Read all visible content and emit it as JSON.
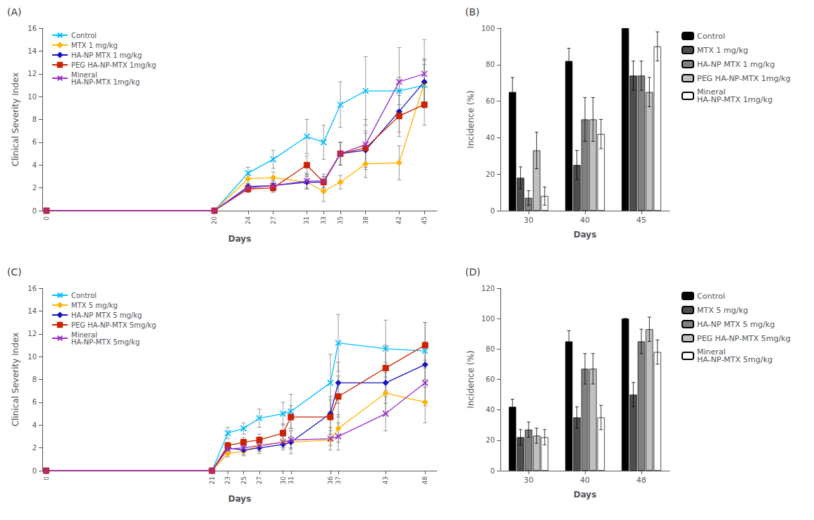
{
  "chart_data": [
    {
      "type": "line",
      "title": "(A)",
      "xlabel": "Days",
      "ylabel": "Clinical Severity Index",
      "x": [
        0,
        20,
        24,
        27,
        31,
        33,
        35,
        38,
        42,
        45
      ],
      "xlim": [
        -0.5,
        46.5
      ],
      "xticks": [
        0,
        20,
        24,
        27,
        31,
        33,
        35,
        38,
        42,
        45
      ],
      "ylim": [
        0,
        16
      ],
      "yticks": [
        0,
        2,
        4,
        6,
        8,
        10,
        12,
        14,
        16
      ],
      "legend": "upper left",
      "grid": false,
      "series": [
        {
          "name": "Control",
          "color": "#00BFFF",
          "marker": "x",
          "values": [
            0,
            0,
            3.3,
            4.5,
            6.5,
            6.0,
            9.3,
            10.5,
            10.5,
            11.0
          ],
          "errors": [
            0,
            0,
            0.5,
            0.8,
            1.5,
            1.5,
            2.0,
            3.0,
            1.2,
            1.8
          ]
        },
        {
          "name": "MTX 1 mg/kg",
          "color": "#FFB300",
          "marker": "diamond",
          "values": [
            0,
            0,
            2.8,
            2.9,
            2.5,
            1.7,
            2.5,
            4.1,
            4.2,
            11.2
          ],
          "errors": [
            0,
            0,
            0.4,
            0.5,
            0.6,
            0.9,
            0.6,
            1.2,
            1.5,
            2.0
          ]
        },
        {
          "name": "HA-NP MTX 1 mg/kg",
          "color": "#1515C0",
          "marker": "diamond",
          "values": [
            0,
            0,
            2.1,
            2.2,
            2.5,
            2.5,
            5.0,
            5.3,
            8.7,
            11.3
          ],
          "errors": [
            0,
            0,
            0.3,
            0.4,
            0.5,
            0.5,
            1.0,
            1.5,
            1.8,
            2.0
          ]
        },
        {
          "name": "PEG HA-NP-MTX 1mg/kg",
          "color": "#CC2200",
          "marker": "square",
          "values": [
            0,
            0,
            1.9,
            2.0,
            4.0,
            2.5,
            5.0,
            5.5,
            8.3,
            9.3
          ],
          "errors": [
            0,
            0,
            0.3,
            0.4,
            0.8,
            0.5,
            1.0,
            1.5,
            1.8,
            1.8
          ]
        },
        {
          "name": "Mineral\nHA-NP-MTX 1mg/kg",
          "color": "#9B30C8",
          "marker": "x",
          "values": [
            0,
            0,
            2.0,
            2.2,
            2.6,
            2.6,
            5.0,
            5.8,
            11.3,
            12.0
          ],
          "errors": [
            0,
            0,
            0.3,
            0.5,
            0.7,
            0.6,
            1.0,
            2.2,
            3.0,
            3.0
          ]
        }
      ]
    },
    {
      "type": "bar",
      "title": "(B)",
      "xlabel": "Days",
      "ylabel": "Incidence (%)",
      "categories": [
        "30",
        "40",
        "45"
      ],
      "ylim": [
        0,
        100
      ],
      "yticks": [
        0,
        20,
        40,
        60,
        80,
        100
      ],
      "legend": "right",
      "grid": false,
      "series": [
        {
          "name": "Control",
          "color": "#000000",
          "values": [
            65,
            82,
            100
          ],
          "errors": [
            8,
            7,
            0
          ]
        },
        {
          "name": "MTX 1 mg/kg",
          "color": "#4d4d4d",
          "values": [
            18,
            25,
            74
          ],
          "errors": [
            6,
            8,
            8
          ]
        },
        {
          "name": "HA-NP MTX 1 mg/kg",
          "color": "#808080",
          "values": [
            7,
            50,
            74
          ],
          "errors": [
            4,
            12,
            8
          ]
        },
        {
          "name": "PEG HA-NP-MTX 1mg/kg",
          "color": "#c0c0c0",
          "values": [
            33,
            50,
            65
          ],
          "errors": [
            10,
            12,
            8
          ]
        },
        {
          "name": "Mineral\nHA-NP-MTX 1mg/kg",
          "color": "#ffffff",
          "values": [
            8,
            42,
            90
          ],
          "errors": [
            5,
            8,
            8
          ]
        }
      ]
    },
    {
      "type": "line",
      "title": "(C)",
      "xlabel": "Days",
      "ylabel": "Clinical Severity Index",
      "x": [
        0,
        21,
        23,
        25,
        27,
        30,
        31,
        36,
        37,
        43,
        48
      ],
      "xlim": [
        -0.5,
        49.5
      ],
      "xticks": [
        0,
        21,
        23,
        25,
        27,
        30,
        31,
        36,
        37,
        43,
        48
      ],
      "ylim": [
        0,
        16
      ],
      "yticks": [
        0,
        2,
        4,
        6,
        8,
        10,
        12,
        14,
        16
      ],
      "legend": "upper left",
      "grid": false,
      "series": [
        {
          "name": "Control",
          "color": "#00BFFF",
          "marker": "x",
          "values": [
            0,
            0,
            3.3,
            3.7,
            4.6,
            5.0,
            5.2,
            7.7,
            11.2,
            10.7,
            10.5
          ],
          "errors": [
            0,
            0,
            0.5,
            0.5,
            0.8,
            1.0,
            1.5,
            2.5,
            2.5,
            2.5,
            2.5
          ]
        },
        {
          "name": "MTX 5 mg/kg",
          "color": "#FFB300",
          "marker": "diamond",
          "values": [
            0,
            0,
            1.5,
            1.7,
            2.2,
            2.5,
            2.5,
            2.7,
            3.7,
            6.8,
            6.0
          ],
          "errors": [
            0,
            0,
            0.3,
            0.4,
            0.5,
            0.5,
            0.5,
            0.5,
            1.2,
            1.8,
            1.8
          ]
        },
        {
          "name": "HA-NP MTX 5 mg/kg",
          "color": "#1515C0",
          "marker": "diamond",
          "values": [
            0,
            0,
            2.0,
            1.8,
            2.0,
            2.3,
            2.5,
            5.0,
            7.7,
            7.7,
            9.3
          ],
          "errors": [
            0,
            0,
            0.3,
            0.4,
            0.5,
            0.5,
            1.0,
            1.5,
            1.8,
            1.8,
            2.0
          ]
        },
        {
          "name": "PEG HA-NP-MTX 5mg/kg",
          "color": "#CC2200",
          "marker": "square",
          "values": [
            0,
            0,
            2.2,
            2.5,
            2.7,
            3.3,
            4.7,
            4.7,
            6.5,
            9.0,
            11.0
          ],
          "errors": [
            0,
            0,
            0.3,
            0.4,
            0.5,
            0.8,
            1.0,
            1.5,
            1.8,
            2.0,
            2.0
          ]
        },
        {
          "name": "Mineral\nHA-NP-MTX 5mg/kg",
          "color": "#9B30C8",
          "marker": "x",
          "values": [
            0,
            0,
            1.9,
            2.0,
            2.2,
            2.5,
            2.7,
            2.8,
            3.0,
            5.0,
            7.7
          ],
          "errors": [
            0,
            0,
            0.3,
            0.4,
            0.5,
            0.5,
            0.8,
            1.0,
            1.2,
            1.5,
            2.0
          ]
        }
      ]
    },
    {
      "type": "bar",
      "title": "(D)",
      "xlabel": "Days",
      "ylabel": "Incidence (%)",
      "categories": [
        "30",
        "40",
        "48"
      ],
      "ylim": [
        0,
        120
      ],
      "yticks": [
        0,
        20,
        40,
        60,
        80,
        100,
        120
      ],
      "legend": "right",
      "grid": false,
      "series": [
        {
          "name": "Control",
          "color": "#000000",
          "values": [
            42,
            85,
            100
          ],
          "errors": [
            5,
            7,
            0
          ]
        },
        {
          "name": "MTX 5 mg/kg",
          "color": "#4d4d4d",
          "values": [
            22,
            35,
            50
          ],
          "errors": [
            5,
            7,
            8
          ]
        },
        {
          "name": "HA-NP MTX 5 mg/kg",
          "color": "#808080",
          "values": [
            27,
            67,
            85
          ],
          "errors": [
            5,
            10,
            8
          ]
        },
        {
          "name": "PEG HA-NP-MTX 5mg/kg",
          "color": "#c0c0c0",
          "values": [
            23,
            67,
            93
          ],
          "errors": [
            5,
            10,
            8
          ]
        },
        {
          "name": "Mineral\nHA-NP-MTX 5mg/kg",
          "color": "#ffffff",
          "values": [
            22,
            35,
            78
          ],
          "errors": [
            5,
            8,
            8
          ]
        }
      ]
    }
  ]
}
